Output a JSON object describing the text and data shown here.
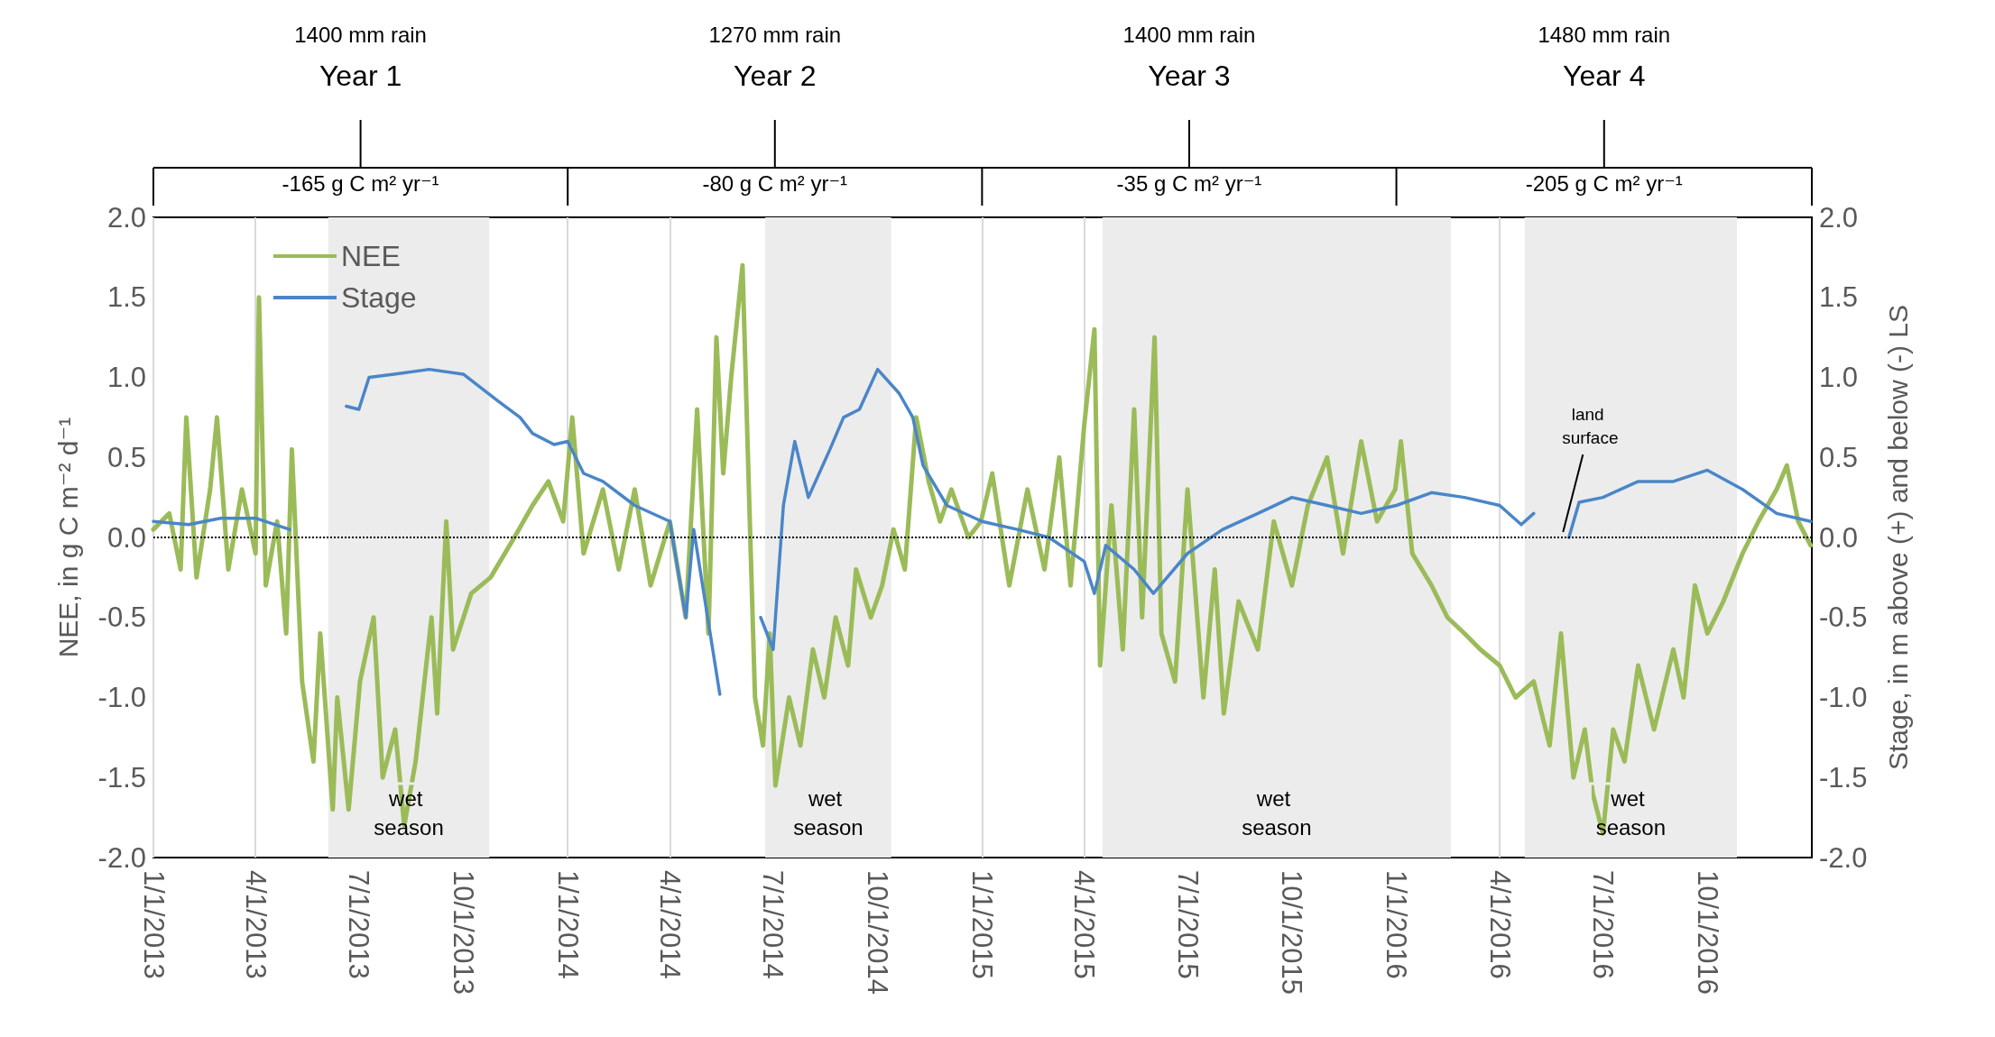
{
  "chart_data": {
    "type": "line",
    "xlabel": null,
    "ylabel": "NEE, in g C m⁻² d⁻¹",
    "y2label": "Stage, in m above (+) and below (-) LS",
    "xlim": [
      "2013-01-01",
      "2017-01-01"
    ],
    "xticks": [
      {
        "value": "2013-01-01",
        "label": "1/1/2013"
      },
      {
        "value": "2013-04-01",
        "label": "4/1/2013"
      },
      {
        "value": "2013-07-01",
        "label": "7/1/2013"
      },
      {
        "value": "2013-10-01",
        "label": "10/1/2013"
      },
      {
        "value": "2014-01-01",
        "label": "1/1/2014"
      },
      {
        "value": "2014-04-01",
        "label": "4/1/2014"
      },
      {
        "value": "2014-07-01",
        "label": "7/1/2014"
      },
      {
        "value": "2014-10-01",
        "label": "10/1/2014"
      },
      {
        "value": "2015-01-01",
        "label": "1/1/2015"
      },
      {
        "value": "2015-04-01",
        "label": "4/1/2015"
      },
      {
        "value": "2015-07-01",
        "label": "7/1/2015"
      },
      {
        "value": "2015-10-01",
        "label": "10/1/2015"
      },
      {
        "value": "2016-01-01",
        "label": "1/1/2016"
      },
      {
        "value": "2016-04-01",
        "label": "4/1/2016"
      },
      {
        "value": "2016-07-01",
        "label": "7/1/2016"
      },
      {
        "value": "2016-10-01",
        "label": "10/1/2016"
      }
    ],
    "ylim": [
      -2,
      2
    ],
    "yticks": [
      {
        "value": -2,
        "label": "-2.0"
      },
      {
        "value": -1.5,
        "label": "-1.5"
      },
      {
        "value": -1,
        "label": "-1.0"
      },
      {
        "value": -0.5,
        "label": "-0.5"
      },
      {
        "value": 0,
        "label": "0.0"
      },
      {
        "value": 0.5,
        "label": "0.5"
      },
      {
        "value": 1,
        "label": "1.0"
      },
      {
        "value": 1.5,
        "label": "1.5"
      },
      {
        "value": 2,
        "label": "2.0"
      }
    ],
    "y2lim": [
      -2,
      2
    ],
    "y2ticks": [
      {
        "value": -2,
        "label": "-2.0"
      },
      {
        "value": -1.5,
        "label": "-1.5"
      },
      {
        "value": -1,
        "label": "-1.0"
      },
      {
        "value": -0.5,
        "label": "-0.5"
      },
      {
        "value": 0,
        "label": "0.0"
      },
      {
        "value": 0.5,
        "label": "0.5"
      },
      {
        "value": 1,
        "label": "1.0"
      },
      {
        "value": 1.5,
        "label": "1.5"
      },
      {
        "value": 2,
        "label": "2.0"
      }
    ],
    "grid": "x",
    "legend": "top left",
    "marker": "none",
    "line_style": "solid",
    "series": [
      {
        "name": "NEE",
        "color": "#9bbb59",
        "x": [
          "2013-01-01",
          "2013-01-15",
          "2013-01-25",
          "2013-01-30",
          "2013-02-08",
          "2013-02-20",
          "2013-02-26",
          "2013-03-08",
          "2013-03-20",
          "2013-04-01",
          "2013-04-04",
          "2013-04-10",
          "2013-04-20",
          "2013-04-28",
          "2013-05-03",
          "2013-05-12",
          "2013-05-22",
          "2013-05-28",
          "2013-06-08",
          "2013-06-12",
          "2013-06-22",
          "2013-07-02",
          "2013-07-14",
          "2013-07-22",
          "2013-08-02",
          "2013-08-10",
          "2013-08-20",
          "2013-09-03",
          "2013-09-08",
          "2013-09-16",
          "2013-09-22",
          "2013-10-08",
          "2013-10-25",
          "2013-11-15",
          "2013-12-01",
          "2013-12-15",
          "2013-12-28",
          "2014-01-05",
          "2014-01-15",
          "2014-02-01",
          "2014-02-15",
          "2014-03-01",
          "2014-03-15",
          "2014-04-01",
          "2014-04-15",
          "2014-04-25",
          "2014-05-05",
          "2014-05-12",
          "2014-05-18",
          "2014-05-25",
          "2014-06-04",
          "2014-06-10",
          "2014-06-15",
          "2014-06-22",
          "2014-06-28",
          "2014-07-03",
          "2014-07-15",
          "2014-07-25",
          "2014-08-05",
          "2014-08-15",
          "2014-08-25",
          "2014-09-05",
          "2014-09-12",
          "2014-09-25",
          "2014-10-05",
          "2014-10-15",
          "2014-10-25",
          "2014-11-04",
          "2014-11-15",
          "2014-11-25",
          "2014-12-05",
          "2014-12-20",
          "2014-12-31",
          "2015-01-10",
          "2015-01-25",
          "2015-02-10",
          "2015-02-25",
          "2015-03-10",
          "2015-03-20",
          "2015-04-01",
          "2015-04-10",
          "2015-04-15",
          "2015-04-25",
          "2015-05-05",
          "2015-05-15",
          "2015-05-22",
          "2015-06-02",
          "2015-06-08",
          "2015-06-20",
          "2015-07-01",
          "2015-07-15",
          "2015-07-25",
          "2015-08-02",
          "2015-08-15",
          "2015-09-01",
          "2015-09-15",
          "2015-10-01",
          "2015-10-15",
          "2015-11-01",
          "2015-11-15",
          "2015-12-01",
          "2015-12-15",
          "2015-12-31",
          "2016-01-05",
          "2016-01-15",
          "2016-02-01",
          "2016-02-15",
          "2016-03-01",
          "2016-03-15",
          "2016-04-01",
          "2016-04-15",
          "2016-05-01",
          "2016-05-15",
          "2016-05-25",
          "2016-06-05",
          "2016-06-15",
          "2016-06-22",
          "2016-07-01",
          "2016-07-10",
          "2016-07-20",
          "2016-08-01",
          "2016-08-15",
          "2016-09-01",
          "2016-09-10",
          "2016-09-20",
          "2016-10-01",
          "2016-10-15",
          "2016-11-01",
          "2016-11-15",
          "2016-12-01",
          "2016-12-10",
          "2016-12-20",
          "2016-12-31"
        ],
        "values": [
          0.05,
          0.15,
          -0.2,
          0.75,
          -0.25,
          0.3,
          0.75,
          -0.2,
          0.3,
          -0.1,
          1.5,
          -0.3,
          0.1,
          -0.6,
          0.55,
          -0.9,
          -1.4,
          -0.6,
          -1.7,
          -1.0,
          -1.7,
          -0.9,
          -0.5,
          -1.5,
          -1.2,
          -1.8,
          -1.4,
          -0.5,
          -1.1,
          0.1,
          -0.7,
          -0.35,
          -0.25,
          0.0,
          0.2,
          0.35,
          0.1,
          0.75,
          -0.1,
          0.3,
          -0.2,
          0.3,
          -0.3,
          0.1,
          -0.5,
          0.8,
          -0.6,
          1.25,
          0.4,
          1.0,
          1.7,
          0.2,
          -1.0,
          -1.3,
          -0.6,
          -1.55,
          -1.0,
          -1.3,
          -0.7,
          -1.0,
          -0.5,
          -0.8,
          -0.2,
          -0.5,
          -0.3,
          0.05,
          -0.2,
          0.75,
          0.35,
          0.1,
          0.3,
          0.0,
          0.1,
          0.4,
          -0.3,
          0.3,
          -0.2,
          0.5,
          -0.3,
          0.7,
          1.3,
          -0.8,
          0.2,
          -0.7,
          0.8,
          -0.5,
          1.25,
          -0.6,
          -0.9,
          0.3,
          -1.0,
          -0.2,
          -1.1,
          -0.4,
          -0.7,
          0.1,
          -0.3,
          0.2,
          0.5,
          -0.1,
          0.6,
          0.1,
          0.3,
          0.6,
          -0.1,
          -0.3,
          -0.5,
          -0.6,
          -0.7,
          -0.8,
          -1.0,
          -0.9,
          -1.3,
          -0.6,
          -1.5,
          -1.2,
          -1.6,
          -1.85,
          -1.2,
          -1.4,
          -0.8,
          -1.2,
          -0.7,
          -1.0,
          -0.3,
          -0.6,
          -0.4,
          -0.1,
          0.1,
          0.3,
          0.45,
          0.1,
          -0.05
        ]
      },
      {
        "name": "Stage",
        "color": "#4a86c8",
        "axis": "y2",
        "x": [
          "2013-01-01",
          "2013-02-01",
          "2013-03-01",
          "2013-04-01",
          "2013-05-01",
          "2013-05-20",
          "2013-06-20",
          "2013-07-01",
          "2013-07-10",
          "2013-08-01",
          "2013-09-01",
          "2013-10-01",
          "2013-11-01",
          "2013-11-20",
          "2013-12-01",
          "2013-12-20",
          "2014-01-01",
          "2014-01-15",
          "2014-02-01",
          "2014-03-01",
          "2014-04-01",
          "2014-04-15",
          "2014-04-22",
          "2014-05-15",
          "2014-06-01",
          "2014-06-20",
          "2014-07-01",
          "2014-07-10",
          "2014-07-20",
          "2014-08-01",
          "2014-08-20",
          "2014-09-01",
          "2014-09-15",
          "2014-10-01",
          "2014-10-20",
          "2014-11-01",
          "2014-11-10",
          "2014-12-01",
          "2015-01-01",
          "2015-02-01",
          "2015-03-01",
          "2015-04-01",
          "2015-04-10",
          "2015-04-20",
          "2015-05-15",
          "2015-06-01",
          "2015-07-01",
          "2015-08-01",
          "2015-09-01",
          "2015-10-01",
          "2015-11-01",
          "2015-12-01",
          "2016-01-01",
          "2016-02-01",
          "2016-03-01",
          "2016-04-01",
          "2016-04-20",
          "2016-05-01",
          "2016-05-15",
          "2016-06-01",
          "2016-06-10",
          "2016-07-01",
          "2016-08-01",
          "2016-09-01",
          "2016-10-01",
          "2016-11-01",
          "2016-12-01",
          "2016-12-31"
        ],
        "values": [
          0.1,
          0.08,
          0.12,
          0.12,
          0.05,
          null,
          0.82,
          0.8,
          1.0,
          1.02,
          1.05,
          1.02,
          0.85,
          0.75,
          0.65,
          0.58,
          0.6,
          0.4,
          0.35,
          0.2,
          0.1,
          -0.5,
          0.05,
          -0.98,
          null,
          -0.5,
          -0.7,
          0.2,
          0.6,
          0.25,
          0.55,
          0.75,
          0.8,
          1.05,
          0.9,
          0.75,
          0.45,
          0.2,
          0.1,
          0.05,
          0.0,
          -0.15,
          -0.35,
          -0.05,
          -0.2,
          -0.35,
          -0.1,
          0.05,
          0.15,
          0.25,
          0.2,
          0.15,
          0.2,
          0.28,
          0.25,
          0.2,
          0.08,
          0.15,
          null,
          0.0,
          0.22,
          0.25,
          0.35,
          0.35,
          0.42,
          0.3,
          0.15,
          0.1
        ]
      }
    ],
    "ref_lines": [
      {
        "axis": "y",
        "value": 0,
        "label": "land surface",
        "color": "#000000",
        "line_style": "dotted"
      }
    ],
    "bands": [
      {
        "axis": "x",
        "from": "2013-06-04",
        "to": "2013-10-24",
        "label": "wet season",
        "color": "#ececec"
      },
      {
        "axis": "x",
        "from": "2014-06-24",
        "to": "2014-10-13",
        "label": "wet season",
        "color": "#ececec"
      },
      {
        "axis": "x",
        "from": "2015-04-17",
        "to": "2016-02-18",
        "label": "wet season",
        "color": "#ececec"
      },
      {
        "axis": "x",
        "from": "2016-04-23",
        "to": "2016-10-27",
        "label": "wet season",
        "color": "#ececec"
      }
    ],
    "annotations": [
      "1400 mm rain",
      "Year 1",
      "-165 g C m² yr⁻¹",
      "1270 mm rain",
      "Year 2",
      "-80 g C m² yr⁻¹",
      "1400 mm rain",
      "Year 3",
      "-35 g C m² yr⁻¹",
      "1480 mm rain",
      "Year 4",
      "-205 g C m² yr⁻¹"
    ]
  }
}
